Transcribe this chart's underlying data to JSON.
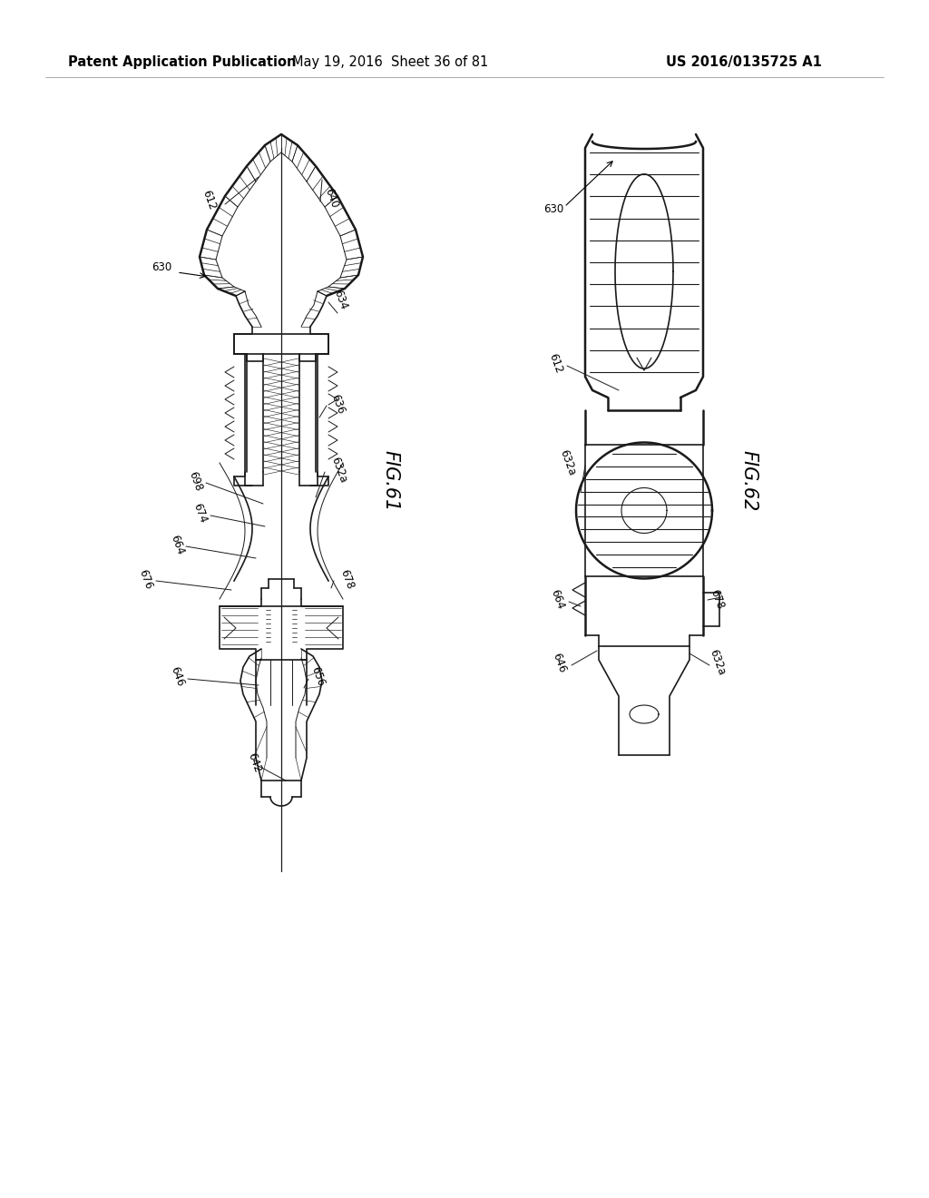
{
  "background_color": "#ffffff",
  "header_left": "Patent Application Publication",
  "header_mid": "May 19, 2016  Sheet 36 of 81",
  "header_right": "US 2016/0135725 A1",
  "fig61_label": "FIG.61",
  "fig62_label": "FIG.62",
  "line_color": "#1a1a1a",
  "text_color": "#000000",
  "header_fontsize": 10.5,
  "label_fontsize": 8.5,
  "fig_label_fontsize": 15
}
